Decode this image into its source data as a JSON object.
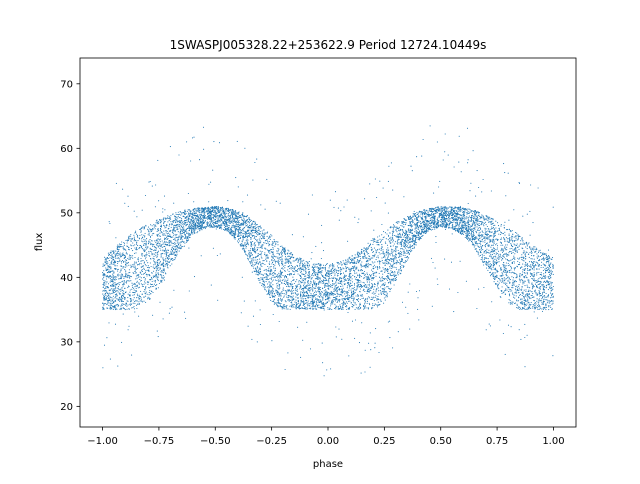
{
  "chart_data": {
    "type": "scatter",
    "title": "1SWASPJ005328.22+253622.9 Period 12724.10449s",
    "xlabel": "phase",
    "ylabel": "flux",
    "xlim": [
      -1.1,
      1.1
    ],
    "ylim": [
      16.8,
      74.0
    ],
    "x_ticks": [
      -1.0,
      -0.75,
      -0.5,
      -0.25,
      0.0,
      0.25,
      0.5,
      0.75,
      1.0
    ],
    "x_tick_labels": [
      "−1.00",
      "−0.75",
      "−0.50",
      "−0.25",
      "0.00",
      "0.25",
      "0.50",
      "0.75",
      "1.00"
    ],
    "y_ticks": [
      20,
      30,
      40,
      50,
      60,
      70
    ],
    "y_tick_labels": [
      "20",
      "30",
      "40",
      "50",
      "60",
      "70"
    ],
    "grid": false,
    "marker_color": "#1f77b4",
    "series": [
      {
        "x": [
          -1.0,
          -0.95,
          -0.9,
          -0.85,
          -0.8,
          -0.75,
          -0.7,
          -0.65,
          -0.6,
          -0.55,
          -0.5,
          -0.45,
          -0.4,
          -0.35,
          -0.3,
          -0.25,
          -0.2,
          -0.15,
          -0.1,
          -0.05,
          0.0,
          0.05,
          0.1,
          0.15,
          0.2,
          0.25,
          0.3,
          0.35,
          0.4,
          0.45,
          0.5,
          0.55,
          0.6,
          0.65,
          0.7,
          0.75,
          0.8,
          0.85,
          0.9,
          0.95,
          1.0
        ],
        "y_upper": [
          43.0,
          44.5,
          46.0,
          47.3,
          48.2,
          49.0,
          49.7,
          50.3,
          50.7,
          50.9,
          51.0,
          50.8,
          50.3,
          49.3,
          48.0,
          46.5,
          44.8,
          43.5,
          42.6,
          42.2,
          42.0,
          42.4,
          43.2,
          44.5,
          46.0,
          47.3,
          48.5,
          49.5,
          50.2,
          50.7,
          51.0,
          51.0,
          50.8,
          50.4,
          49.7,
          48.8,
          47.8,
          46.5,
          45.2,
          44.0,
          43.0
        ],
        "y_lower": [
          35.0,
          35.0,
          35.0,
          35.0,
          36.0,
          38.5,
          41.5,
          44.5,
          46.5,
          47.5,
          47.8,
          47.2,
          45.5,
          42.5,
          39.0,
          36.0,
          35.0,
          35.0,
          35.0,
          35.0,
          35.0,
          35.0,
          35.0,
          35.0,
          35.0,
          36.0,
          39.0,
          42.5,
          45.5,
          47.2,
          47.8,
          47.5,
          46.5,
          44.5,
          41.5,
          38.5,
          36.0,
          35.0,
          35.0,
          35.0,
          35.0
        ]
      }
    ]
  }
}
